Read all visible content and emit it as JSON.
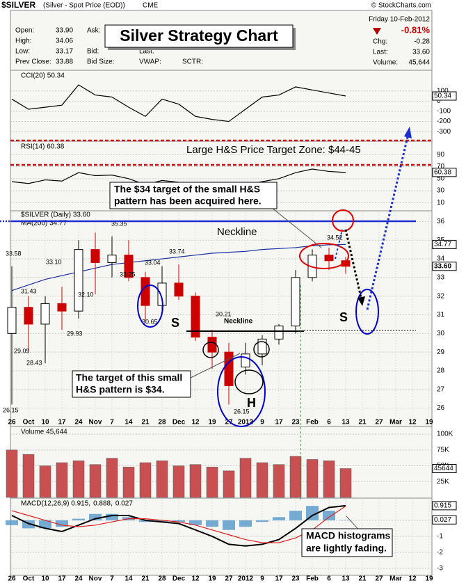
{
  "header": {
    "symbol": "$SILVER",
    "desc": "(Silver - Spot Price (EOD))",
    "exchange": "CME",
    "copyright": "© StockCharts.com",
    "title": "Silver Strategy Chart",
    "fields": [
      [
        "Open:",
        "33.90"
      ],
      [
        "High:",
        "34.06"
      ],
      [
        "Low:",
        "33.17"
      ],
      [
        "Prev Close:",
        "33.88"
      ]
    ],
    "fields2": [
      "Ask:",
      "Bid:",
      "Bid Size:"
    ],
    "fields3": [
      "Last:",
      "VWAP:",
      "SCTR:"
    ],
    "date": "Friday  10-Feb-2012",
    "change_pct": "-0.81%",
    "chg": [
      "Chg:",
      "-0.28"
    ],
    "last": [
      "Last:",
      "33.60"
    ],
    "volume": [
      "Volume:",
      "45,644"
    ]
  },
  "annotations": {
    "target_zone": "Large H&S Price Target Zone: $44-45",
    "acquired": [
      "The $34 target of the small H&S",
      "pattern has been acquired here."
    ],
    "neckline_big": "Neckline",
    "neckline_small": "Neckline",
    "s1": "S",
    "h": "H",
    "s2": "S",
    "target_small": [
      "The target of this small",
      "H&S pattern is $34."
    ],
    "macd_note": [
      "MACD histograms",
      "are lightly fading."
    ],
    "price_labels": [
      "33.58",
      "31.43",
      "29.09",
      "28.43",
      "33.10",
      "29.93",
      "35.35",
      "32.10",
      "33.25",
      "33.04",
      "30.65",
      "33.74",
      "30.21",
      "26.15",
      "26.15",
      "34.52"
    ]
  },
  "chart_data": [
    {
      "type": "line",
      "title": "CCI(20) 50.34",
      "ylim": [
        -340,
        290
      ],
      "yticks": [
        100,
        0,
        -100,
        -200,
        -300
      ],
      "series": [
        {
          "name": "CCI(20)",
          "color": "#000000",
          "values": [
            20,
            -80,
            -60,
            -40,
            160,
            60,
            40,
            -60,
            -150,
            20,
            -30,
            -150,
            -180,
            -200,
            -80,
            40,
            60,
            140,
            110,
            80,
            50.34
          ]
        }
      ]
    },
    {
      "type": "line",
      "title": "RSI(14) 60.38",
      "ylim": [
        0,
        110
      ],
      "yticks": [
        90,
        70,
        50,
        30,
        10
      ],
      "series": [
        {
          "name": "RSI(14)",
          "color": "#000000",
          "values": [
            45,
            42,
            48,
            46,
            60,
            55,
            56,
            50,
            40,
            47,
            44,
            35,
            32,
            30,
            40,
            45,
            50,
            60,
            66,
            62,
            60.38
          ]
        }
      ]
    },
    {
      "type": "candlestick",
      "title": "$SILVER (Daily) 33.60",
      "ma_title": "MA(200) 34.77",
      "last_label": "33.60",
      "categories": [
        "26",
        "Oct",
        "10",
        "17",
        "24",
        "Nov",
        "7",
        "14",
        "21",
        "28",
        "Dec",
        "12",
        "19",
        "27",
        "2012",
        "9",
        "17",
        "23",
        "Feb",
        "6",
        "13",
        "21",
        "27",
        "Mar",
        "12",
        "19"
      ],
      "ylim": [
        25.5,
        36.5
      ],
      "yticks": [
        36,
        35,
        34,
        33,
        32,
        31,
        30,
        29,
        28,
        27,
        26
      ],
      "up_color": "#000000",
      "down_color": "#cc0000",
      "open": [
        30.0,
        31.4,
        30.5,
        31.6,
        31.2,
        34.5,
        33.8,
        34.2,
        33.0,
        31.5,
        32.7,
        32.0,
        29.8,
        29.0,
        28.2,
        28.9,
        29.7,
        30.4,
        33.0,
        34.2,
        33.9,
        null,
        null,
        null,
        null,
        null
      ],
      "high": [
        33.6,
        32.0,
        32.0,
        32.5,
        35.0,
        35.4,
        35.2,
        35.0,
        33.3,
        33.6,
        33.7,
        32.2,
        30.2,
        29.5,
        29.5,
        29.9,
        30.5,
        33.4,
        34.5,
        34.6,
        34.1,
        null,
        null,
        null,
        null,
        null
      ],
      "low": [
        26.2,
        29.1,
        28.4,
        30.2,
        30.8,
        32.1,
        33.0,
        32.8,
        30.7,
        31.2,
        31.8,
        29.6,
        28.1,
        26.2,
        27.8,
        28.3,
        29.4,
        30.0,
        32.8,
        33.4,
        33.2,
        null,
        null,
        null,
        null,
        null
      ],
      "close": [
        31.4,
        30.5,
        31.6,
        31.2,
        34.5,
        33.8,
        34.2,
        33.0,
        31.5,
        32.7,
        32.0,
        29.8,
        29.0,
        27.2,
        28.9,
        29.7,
        30.4,
        33.0,
        34.2,
        33.9,
        33.6,
        null,
        null,
        null,
        null,
        null
      ],
      "ma": {
        "name": "MA(200)",
        "color": "#1a2ea0",
        "values": [
          32.3,
          32.6,
          32.9,
          33.1,
          33.3,
          33.5,
          33.7,
          33.8,
          33.9,
          34.0,
          34.1,
          34.2,
          34.3,
          34.35,
          34.4,
          34.5,
          34.55,
          34.6,
          34.7,
          34.75,
          34.77,
          null,
          null,
          null,
          null,
          null
        ]
      }
    },
    {
      "type": "bar",
      "title": "Volume 45,644",
      "ylim": [
        0,
        110000
      ],
      "color": "#c85050",
      "yticks": [
        {
          "value": 100000,
          "label": "100K"
        },
        {
          "value": 75000,
          "label": "75K"
        },
        {
          "value": 50000,
          "label": "50K"
        },
        {
          "value": 25000,
          "label": "25K"
        }
      ],
      "values": [
        75000,
        68000,
        50000,
        55000,
        58000,
        52000,
        62000,
        48000,
        55000,
        58000,
        50000,
        52000,
        48000,
        42000,
        62000,
        55000,
        52000,
        65000,
        60000,
        58000,
        45644
      ]
    },
    {
      "type": "macd",
      "title_parts": [
        "MACD(12,26,9) 0.915,",
        "0.888,",
        "0.027"
      ],
      "categories": [
        "26",
        "Oct",
        "10",
        "17",
        "24",
        "Nov",
        "7",
        "14",
        "21",
        "28",
        "Dec",
        "12",
        "19",
        "27",
        "2012",
        "9",
        "17",
        "23",
        "Feb",
        "6",
        "13",
        "21",
        "27",
        "Mar",
        "12",
        "19"
      ],
      "ylim": [
        -3.35,
        1.3
      ],
      "yticks": [
        0,
        -1,
        -2,
        -3
      ],
      "series": [
        {
          "name": "MACD",
          "color": "#000000",
          "values": [
            0.3,
            -0.2,
            -0.5,
            -0.7,
            -0.3,
            0.1,
            0.3,
            0.3,
            0.0,
            -0.1,
            -0.2,
            -0.6,
            -1.0,
            -1.5,
            -1.6,
            -1.5,
            -1.2,
            -0.5,
            0.3,
            0.8,
            0.915,
            null,
            null,
            null,
            null,
            null
          ]
        },
        {
          "name": "Signal",
          "color": "#e02020",
          "values": [
            0.6,
            0.3,
            0.0,
            -0.3,
            -0.4,
            -0.3,
            -0.1,
            0.1,
            0.1,
            0.0,
            -0.1,
            -0.3,
            -0.6,
            -0.9,
            -1.2,
            -1.4,
            -1.4,
            -1.1,
            -0.6,
            0.2,
            0.888,
            null,
            null,
            null,
            null,
            null
          ]
        },
        {
          "name": "Histogram",
          "color": "#4a90c8",
          "kind": "histogram",
          "values": [
            -0.3,
            -0.5,
            -0.5,
            -0.4,
            0.1,
            0.4,
            0.4,
            0.2,
            -0.1,
            -0.1,
            -0.1,
            -0.3,
            -0.4,
            -0.6,
            -0.4,
            -0.1,
            0.2,
            0.6,
            0.9,
            0.6,
            0.027,
            null,
            null,
            null,
            null,
            null
          ]
        }
      ]
    }
  ]
}
